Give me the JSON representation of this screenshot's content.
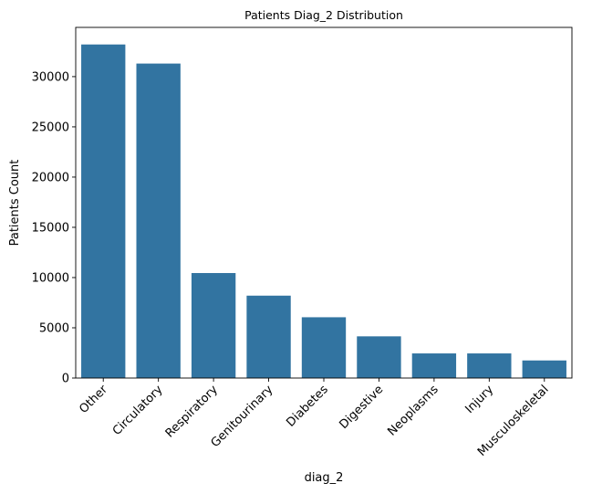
{
  "chart_data": {
    "type": "bar",
    "title": "Patients Diag_2 Distribution",
    "xlabel": "diag_2",
    "ylabel": "Patients Count",
    "categories": [
      "Other",
      "Circulatory",
      "Respiratory",
      "Genitourinary",
      "Diabetes",
      "Digestive",
      "Neoplasms",
      "Injury",
      "Musculoskeletal"
    ],
    "values": [
      33200,
      31300,
      10450,
      8200,
      6050,
      4150,
      2450,
      2450,
      1750
    ],
    "ylim": [
      0,
      34900
    ],
    "yticks": [
      0,
      5000,
      10000,
      15000,
      20000,
      25000,
      30000
    ],
    "grid": false,
    "legend": "none",
    "bar_color": "#3274a1"
  }
}
